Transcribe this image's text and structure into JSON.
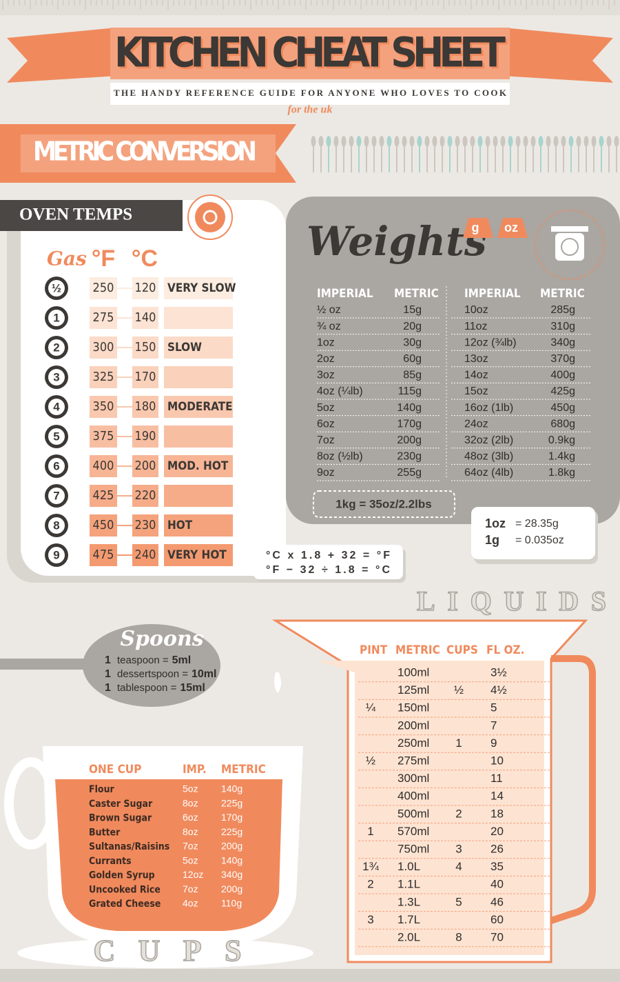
{
  "header": {
    "title": "KITCHEN CHEAT SHEET",
    "subtitle": "THE HANDY REFERENCE GUIDE FOR ANYONE WHO LOVES TO COOK",
    "region": "for the uk"
  },
  "section_title": "METRIC CONVERSION",
  "oven": {
    "title": "OVEN TEMPS",
    "columns": [
      "Gas",
      "°F",
      "°C"
    ],
    "rows": [
      {
        "gas": "½",
        "f": "250",
        "c": "120",
        "label": "VERY SLOW"
      },
      {
        "gas": "1",
        "f": "275",
        "c": "140"
      },
      {
        "gas": "2",
        "f": "300",
        "c": "150",
        "label": "SLOW"
      },
      {
        "gas": "3",
        "f": "325",
        "c": "170"
      },
      {
        "gas": "4",
        "f": "350",
        "c": "180",
        "label": "MODERATE"
      },
      {
        "gas": "5",
        "f": "375",
        "c": "190"
      },
      {
        "gas": "6",
        "f": "400",
        "c": "200",
        "label": "MOD. HOT"
      },
      {
        "gas": "7",
        "f": "425",
        "c": "220"
      },
      {
        "gas": "8",
        "f": "450",
        "c": "230",
        "label": "HOT"
      },
      {
        "gas": "9",
        "f": "475",
        "c": "240",
        "label": "VERY HOT"
      }
    ]
  },
  "formulas": [
    "°C x 1.8 + 32 = °F",
    "°F − 32 ÷ 1.8 = °C"
  ],
  "weights": {
    "title": "Weights",
    "units": [
      "g",
      "oz"
    ],
    "headers": [
      "IMPERIAL",
      "METRIC",
      "IMPERIAL",
      "METRIC"
    ],
    "rows": [
      [
        "½ oz",
        "15g",
        "10oz",
        "285g"
      ],
      [
        "¾ oz",
        "20g",
        "11oz",
        "310g"
      ],
      [
        "1oz",
        "30g",
        "12oz (¾lb)",
        "340g"
      ],
      [
        "2oz",
        "60g",
        "13oz",
        "370g"
      ],
      [
        "3oz",
        "85g",
        "14oz",
        "400g"
      ],
      [
        "4oz (¼lb)",
        "115g",
        "15oz",
        "425g"
      ],
      [
        "5oz",
        "140g",
        "16oz (1lb)",
        "450g"
      ],
      [
        "6oz",
        "170g",
        "24oz",
        "680g"
      ],
      [
        "7oz",
        "200g",
        "32oz (2lb)",
        "0.9kg"
      ],
      [
        "8oz (½lb)",
        "230g",
        "48oz (3lb)",
        "1.4kg"
      ],
      [
        "9oz",
        "255g",
        "64oz (4lb)",
        "1.8kg"
      ]
    ],
    "note": "1kg = 35oz/2.2lbs",
    "equivalences": [
      {
        "unit": "1oz",
        "value": "= 28.35g"
      },
      {
        "unit": "1g",
        "value": "= 0.035oz"
      }
    ]
  },
  "spoons": {
    "title": "Spoons",
    "items": [
      {
        "qty": "1",
        "unit": "teaspoon =",
        "amount": "5ml"
      },
      {
        "qty": "1",
        "unit": "dessertspoon =",
        "amount": "10ml"
      },
      {
        "qty": "1",
        "unit": "tablespoon =",
        "amount": "15ml"
      }
    ]
  },
  "liquids": {
    "title": "LIQUIDS",
    "headers": [
      "PINT",
      "METRIC",
      "CUPS",
      "FL OZ."
    ],
    "rows": [
      [
        null,
        "100ml",
        null,
        "3½"
      ],
      [
        null,
        "125ml",
        "½",
        "4½"
      ],
      [
        "¼",
        "150ml",
        null,
        "5"
      ],
      [
        null,
        "200ml",
        null,
        "7"
      ],
      [
        null,
        "250ml",
        "1",
        "9"
      ],
      [
        "½",
        "275ml",
        null,
        "10"
      ],
      [
        null,
        "300ml",
        null,
        "11"
      ],
      [
        null,
        "400ml",
        null,
        "14"
      ],
      [
        null,
        "500ml",
        "2",
        "18"
      ],
      [
        "1",
        "570ml",
        null,
        "20"
      ],
      [
        null,
        "750ml",
        "3",
        "26"
      ],
      [
        "1¾",
        "1.0L",
        "4",
        "35"
      ],
      [
        "2",
        "1.1L",
        null,
        "40"
      ],
      [
        null,
        "1.3L",
        "5",
        "46"
      ],
      [
        "3",
        "1.7L",
        null,
        "60"
      ],
      [
        null,
        "2.0L",
        "8",
        "70"
      ]
    ]
  },
  "cups": {
    "title": "CUPS",
    "headers": [
      "ONE CUP",
      "IMP.",
      "METRIC"
    ],
    "rows": [
      [
        "Flour",
        "5oz",
        "140g"
      ],
      [
        "Caster Sugar",
        "8oz",
        "225g"
      ],
      [
        "Brown Sugar",
        "6oz",
        "170g"
      ],
      [
        "Butter",
        "8oz",
        "225g"
      ],
      [
        "Sultanas/Raisins",
        "7oz",
        "200g"
      ],
      [
        "Currants",
        "5oz",
        "140g"
      ],
      [
        "Golden Syrup",
        "12oz",
        "340g"
      ],
      [
        "Uncooked Rice",
        "7oz",
        "200g"
      ],
      [
        "Grated Cheese",
        "4oz",
        "110g"
      ]
    ]
  }
}
